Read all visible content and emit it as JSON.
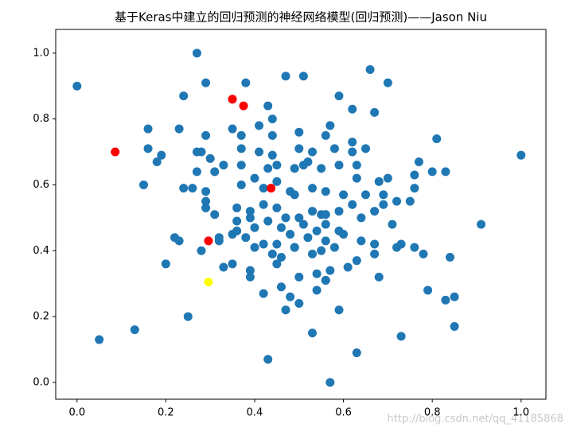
{
  "chart_data": {
    "type": "scatter",
    "title": "基于Keras中建立的回归预测的神经网络模型(回归预测)——Jason Niu",
    "watermark": "http://blog.csdn.net/qq_41185868",
    "xlim": [
      -0.048,
      1.056
    ],
    "ylim": [
      -0.051,
      1.072
    ],
    "xticks": [
      {
        "value": 0,
        "label": "0.0"
      },
      {
        "value": 0.2,
        "label": "0.2"
      },
      {
        "value": 0.4,
        "label": "0.4"
      },
      {
        "value": 0.6,
        "label": "0.6"
      },
      {
        "value": 0.8,
        "label": "0.8"
      },
      {
        "value": 1,
        "label": "1.0"
      }
    ],
    "yticks": [
      {
        "value": 0,
        "label": "0.0"
      },
      {
        "value": 0.2,
        "label": "0.2"
      },
      {
        "value": 0.4,
        "label": "0.4"
      },
      {
        "value": 0.6,
        "label": "0.6"
      },
      {
        "value": 0.8,
        "label": "0.8"
      },
      {
        "value": 1,
        "label": "1.0"
      }
    ],
    "grid": false,
    "series": [
      {
        "color": "#1f77b4",
        "x": [
          0.0,
          0.27,
          0.29,
          0.24,
          0.38,
          0.47,
          0.51,
          0.66,
          0.7,
          0.59,
          0.43,
          0.35,
          0.62,
          0.67,
          0.44,
          0.16,
          0.23,
          0.35,
          0.37,
          0.41,
          0.29,
          0.44,
          0.5,
          0.57,
          0.56,
          0.62,
          0.81,
          0.16,
          0.19,
          0.18,
          0.27,
          0.28,
          0.37,
          0.41,
          0.44,
          0.5,
          0.53,
          0.58,
          0.62,
          0.65,
          0.77,
          1.0,
          0.27,
          0.3,
          0.37,
          0.33,
          0.31,
          0.43,
          0.45,
          0.49,
          0.51,
          0.52,
          0.55,
          0.59,
          0.63,
          0.63,
          0.7,
          0.76,
          0.8,
          0.83,
          0.15,
          0.24,
          0.26,
          0.29,
          0.29,
          0.37,
          0.4,
          0.42,
          0.45,
          0.48,
          0.49,
          0.53,
          0.56,
          0.6,
          0.65,
          0.68,
          0.69,
          0.72,
          0.75,
          0.76,
          0.29,
          0.31,
          0.36,
          0.39,
          0.42,
          0.45,
          0.47,
          0.5,
          0.53,
          0.55,
          0.56,
          0.59,
          0.62,
          0.64,
          0.67,
          0.69,
          0.36,
          0.39,
          0.43,
          0.46,
          0.48,
          0.51,
          0.54,
          0.56,
          0.59,
          0.4,
          0.36,
          0.71,
          0.91,
          0.22,
          0.23,
          0.32,
          0.35,
          0.38,
          0.42,
          0.45,
          0.49,
          0.52,
          0.56,
          0.6,
          0.64,
          0.67,
          0.72,
          0.73,
          0.76,
          0.2,
          0.28,
          0.32,
          0.33,
          0.35,
          0.4,
          0.44,
          0.45,
          0.46,
          0.49,
          0.53,
          0.55,
          0.58,
          0.63,
          0.61,
          0.67,
          0.78,
          0.84,
          0.39,
          0.39,
          0.46,
          0.5,
          0.54,
          0.56,
          0.57,
          0.68,
          0.42,
          0.48,
          0.54,
          0.56,
          0.79,
          0.85,
          0.83,
          0.47,
          0.5,
          0.59,
          0.25,
          0.13,
          0.85,
          0.53,
          0.73,
          0.05,
          0.63,
          0.43,
          0.57
        ],
        "values": [
          0.9,
          1.0,
          0.91,
          0.87,
          0.91,
          0.93,
          0.93,
          0.95,
          0.91,
          0.87,
          0.84,
          0.86,
          0.83,
          0.82,
          0.8,
          0.77,
          0.77,
          0.77,
          0.75,
          0.78,
          0.75,
          0.75,
          0.76,
          0.78,
          0.75,
          0.73,
          0.74,
          0.71,
          0.69,
          0.67,
          0.7,
          0.7,
          0.71,
          0.7,
          0.69,
          0.71,
          0.7,
          0.71,
          0.7,
          0.71,
          0.67,
          0.69,
          0.64,
          0.68,
          0.66,
          0.66,
          0.64,
          0.65,
          0.66,
          0.65,
          0.66,
          0.67,
          0.65,
          0.66,
          0.66,
          0.62,
          0.62,
          0.63,
          0.64,
          0.64,
          0.6,
          0.59,
          0.59,
          0.58,
          0.55,
          0.6,
          0.62,
          0.59,
          0.61,
          0.58,
          0.57,
          0.59,
          0.58,
          0.57,
          0.57,
          0.61,
          0.57,
          0.55,
          0.55,
          0.59,
          0.53,
          0.51,
          0.53,
          0.52,
          0.54,
          0.53,
          0.5,
          0.5,
          0.52,
          0.51,
          0.51,
          0.52,
          0.54,
          0.5,
          0.52,
          0.54,
          0.49,
          0.5,
          0.49,
          0.47,
          0.45,
          0.48,
          0.46,
          0.48,
          0.46,
          0.47,
          0.46,
          0.48,
          0.48,
          0.44,
          0.43,
          0.44,
          0.45,
          0.44,
          0.42,
          0.42,
          0.41,
          0.44,
          0.43,
          0.45,
          0.43,
          0.42,
          0.41,
          0.42,
          0.41,
          0.36,
          0.4,
          0.43,
          0.35,
          0.36,
          0.41,
          0.39,
          0.36,
          0.38,
          0.41,
          0.39,
          0.4,
          0.41,
          0.37,
          0.35,
          0.39,
          0.39,
          0.38,
          0.34,
          0.32,
          0.29,
          0.32,
          0.33,
          0.31,
          0.34,
          0.32,
          0.27,
          0.26,
          0.28,
          0.31,
          0.28,
          0.26,
          0.25,
          0.22,
          0.24,
          0.22,
          0.2,
          0.16,
          0.17,
          0.15,
          0.14,
          0.13,
          0.09,
          0.07,
          0.0
        ]
      },
      {
        "color": "#ff0000",
        "x": [
          0.35,
          0.375,
          0.086,
          0.437,
          0.296
        ],
        "values": [
          0.86,
          0.84,
          0.7,
          0.59,
          0.43
        ]
      },
      {
        "color": "#ffff00",
        "x": [
          0.296
        ],
        "values": [
          0.305
        ]
      }
    ]
  }
}
